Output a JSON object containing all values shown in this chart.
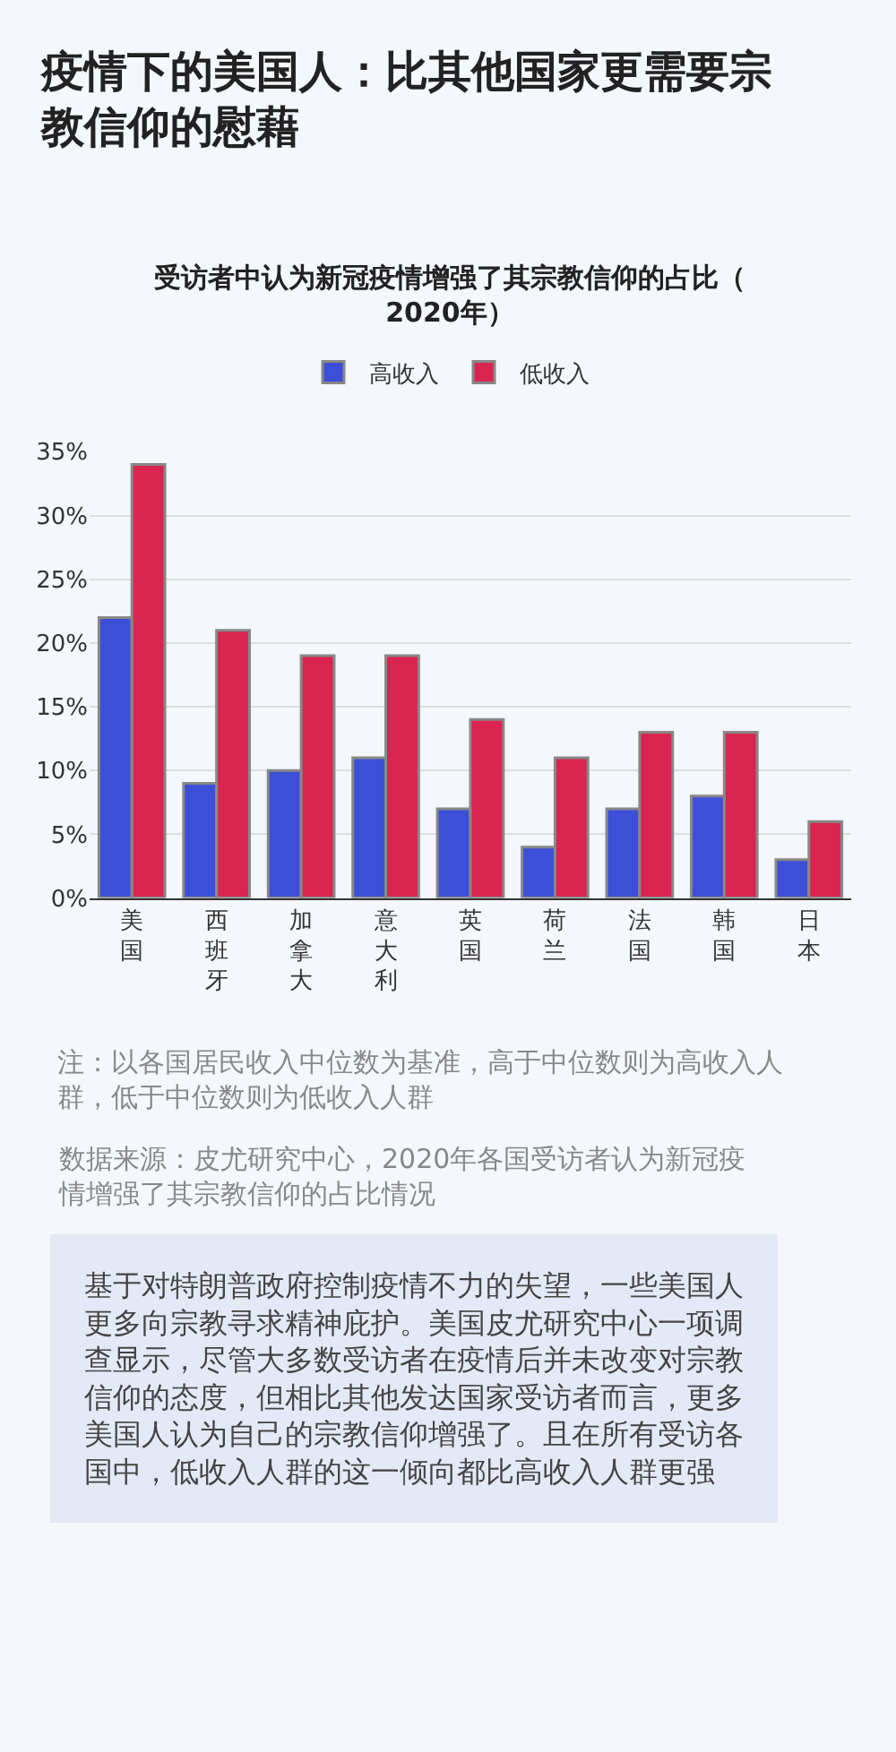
{
  "chart_data": {
    "type": "bar",
    "title": "疫情下的美国人：比其他国家更需要宗教信仰的慰藉",
    "subtitle": "受访者中认为新冠疫情增强了其宗教信仰的占比（2020年）",
    "categories": [
      "美国",
      "西班牙",
      "加拿大",
      "意大利",
      "英国",
      "荷兰",
      "法国",
      "韩国",
      "日本"
    ],
    "series": [
      {
        "name": "高收入",
        "color": "#3d4fd6",
        "values": [
          22,
          9,
          10,
          11,
          7,
          4,
          7,
          8,
          3
        ]
      },
      {
        "name": "低收入",
        "color": "#d9254f",
        "values": [
          34,
          21,
          19,
          19,
          14,
          11,
          13,
          13,
          6
        ]
      }
    ],
    "ylim": [
      0,
      35
    ],
    "yticks": [
      {
        "value": 0,
        "label": "0%"
      },
      {
        "value": 5,
        "label": "5%"
      },
      {
        "value": 10,
        "label": "10%"
      },
      {
        "value": 15,
        "label": "15%"
      },
      {
        "value": 20,
        "label": "20%"
      },
      {
        "value": 25,
        "label": "25%"
      },
      {
        "value": 30,
        "label": "30%"
      },
      {
        "value": 35,
        "label": "35%"
      }
    ],
    "grid": "y",
    "legend": "top",
    "annotations": [
      "注：以各国居民收入中位数为基准，高于中位数则为高收入人群，低于中位数则为低收入人群",
      "数据来源：皮尤研究中心，2020年各国受访者认为新冠疫情增强了其宗教信仰的占比情况",
      "基于对特朗普政府控制疫情不力的失望，一些美国人更多向宗教寻求精神庇护。美国皮尤研究中心一项调查显示，尽管大多数受访者在疫情后并未改变对宗教信仰的态度，但相比其他发达国家受访者而言，更多美国人认为自己的宗教信仰增强了。且在所有受访各国中，低收入人群的这一倾向都比高收入人群更强"
    ]
  }
}
